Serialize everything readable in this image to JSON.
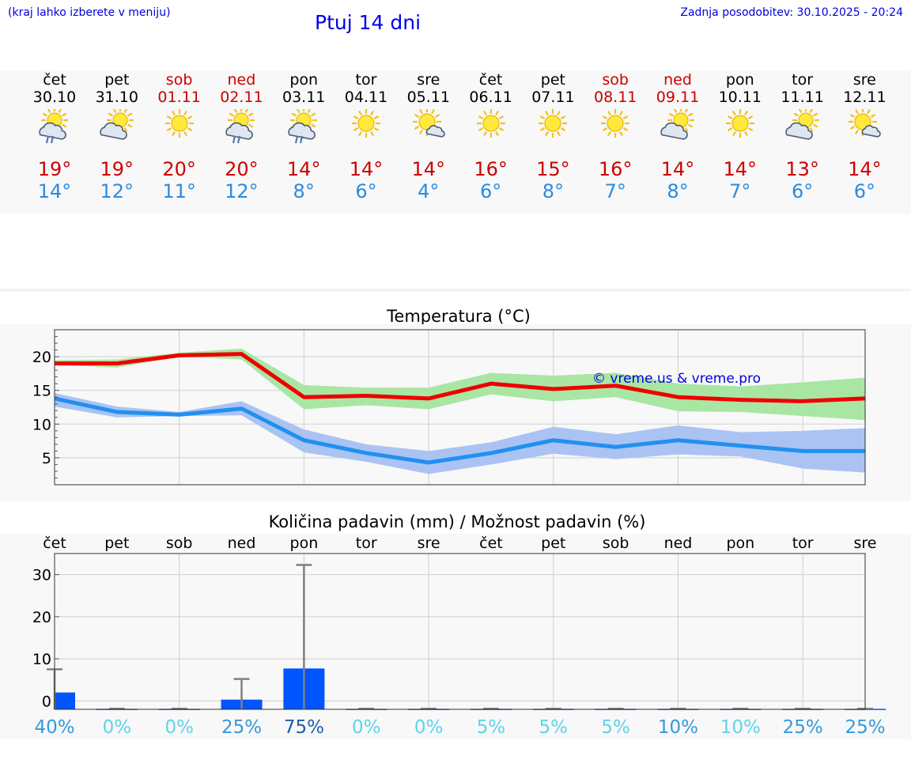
{
  "header": {
    "note": "(kraj lahko izberete v meniju)",
    "title": "Ptuj 14 dni",
    "updated": "Zadnja posodobitev: 30.10.2025 - 20:24"
  },
  "days": [
    {
      "name": "čet",
      "date": "30.10",
      "weekend": false,
      "icon": "sun-cloud-rain-icon",
      "max": "19°",
      "min": "14°"
    },
    {
      "name": "pet",
      "date": "31.10",
      "weekend": false,
      "icon": "sun-cloud-icon",
      "max": "19°",
      "min": "12°"
    },
    {
      "name": "sob",
      "date": "01.11",
      "weekend": true,
      "icon": "sun-icon",
      "max": "20°",
      "min": "11°"
    },
    {
      "name": "ned",
      "date": "02.11",
      "weekend": true,
      "icon": "sun-cloud-rain-icon",
      "max": "20°",
      "min": "12°"
    },
    {
      "name": "pon",
      "date": "03.11",
      "weekend": false,
      "icon": "sun-cloud-rain-icon",
      "max": "14°",
      "min": "8°"
    },
    {
      "name": "tor",
      "date": "04.11",
      "weekend": false,
      "icon": "sun-icon",
      "max": "14°",
      "min": "6°"
    },
    {
      "name": "sre",
      "date": "05.11",
      "weekend": false,
      "icon": "sun-small-cloud-icon",
      "max": "14°",
      "min": "4°"
    },
    {
      "name": "čet",
      "date": "06.11",
      "weekend": false,
      "icon": "sun-icon",
      "max": "16°",
      "min": "6°"
    },
    {
      "name": "pet",
      "date": "07.11",
      "weekend": false,
      "icon": "sun-icon",
      "max": "15°",
      "min": "8°"
    },
    {
      "name": "sob",
      "date": "08.11",
      "weekend": true,
      "icon": "sun-icon",
      "max": "16°",
      "min": "7°"
    },
    {
      "name": "ned",
      "date": "09.11",
      "weekend": true,
      "icon": "sun-cloud-icon",
      "max": "14°",
      "min": "8°"
    },
    {
      "name": "pon",
      "date": "10.11",
      "weekend": false,
      "icon": "sun-icon",
      "max": "14°",
      "min": "7°"
    },
    {
      "name": "tor",
      "date": "11.11",
      "weekend": false,
      "icon": "sun-cloud-icon",
      "max": "13°",
      "min": "6°"
    },
    {
      "name": "sre",
      "date": "12.11",
      "weekend": false,
      "icon": "sun-small-cloud-icon",
      "max": "14°",
      "min": "6°"
    }
  ],
  "chart_data": [
    {
      "type": "line",
      "title": "Temperatura (°C)",
      "watermark": "© vreme.us & vreme.pro",
      "ylim": [
        1,
        24
      ],
      "yticks": [
        5,
        10,
        15,
        20
      ],
      "series": [
        {
          "name": "max",
          "color": "#ee0000",
          "band_color": "#a9e6a4",
          "values": [
            19,
            19,
            20.2,
            20.4,
            14,
            14.2,
            13.8,
            16,
            15.2,
            15.7,
            14,
            13.6,
            13.4,
            13.8
          ],
          "band_low": [
            18.8,
            18.4,
            20,
            19.6,
            12.2,
            12.8,
            12.2,
            14.4,
            13.4,
            14,
            11.9,
            11.8,
            11.2,
            10.6
          ],
          "band_high": [
            19.5,
            19.6,
            20.6,
            21.2,
            15.8,
            15.4,
            15.4,
            17.6,
            17.2,
            17.6,
            16,
            15.6,
            16.2,
            16.9
          ]
        },
        {
          "name": "min",
          "color": "#2190f0",
          "band_color": "#aac3f2",
          "values": [
            13.8,
            11.8,
            11.4,
            12.3,
            7.6,
            5.7,
            4.3,
            5.7,
            7.6,
            6.6,
            7.6,
            6.8,
            6.0,
            6.0
          ],
          "band_low": [
            12.6,
            11,
            11.2,
            11.3,
            5.8,
            4.4,
            2.6,
            4,
            5.6,
            4.8,
            5.5,
            5.2,
            3.4,
            2.8
          ],
          "band_high": [
            14.6,
            12.6,
            11.8,
            13.4,
            9.2,
            7,
            6,
            7.3,
            9.6,
            8.5,
            9.8,
            8.8,
            9,
            9.4
          ]
        }
      ]
    },
    {
      "type": "bar",
      "title": "Količina padavin (mm) / Možnost padavin (%)",
      "categories": [
        "čet",
        "pet",
        "sob",
        "ned",
        "pon",
        "tor",
        "sre",
        "čet",
        "pet",
        "sob",
        "ned",
        "pon",
        "tor",
        "sre"
      ],
      "ylim": [
        -2,
        35
      ],
      "yticks": [
        0,
        10,
        20,
        30
      ],
      "bar_color": "#0055ff",
      "errorbar_color": "#808080",
      "values": [
        2,
        0,
        0,
        0.3,
        7.7,
        0,
        0,
        0,
        0,
        0,
        0,
        0,
        0,
        0
      ],
      "upper": [
        7.5,
        0,
        0,
        5.2,
        32.3,
        0,
        0,
        0,
        0,
        0,
        0,
        0,
        0,
        0
      ],
      "chance": [
        "40%",
        "0%",
        "0%",
        "25%",
        "75%",
        "0%",
        "0%",
        "5%",
        "5%",
        "5%",
        "10%",
        "10%",
        "25%",
        "25%"
      ],
      "chance_colors": [
        "#3399dd",
        "#5ed3e8",
        "#5ed3e8",
        "#3399dd",
        "#1a5fa8",
        "#5ed3e8",
        "#5ed3e8",
        "#5ed3e8",
        "#5ed3e8",
        "#5ed3e8",
        "#3399dd",
        "#5ed3e8",
        "#3399dd",
        "#3399dd"
      ]
    }
  ]
}
